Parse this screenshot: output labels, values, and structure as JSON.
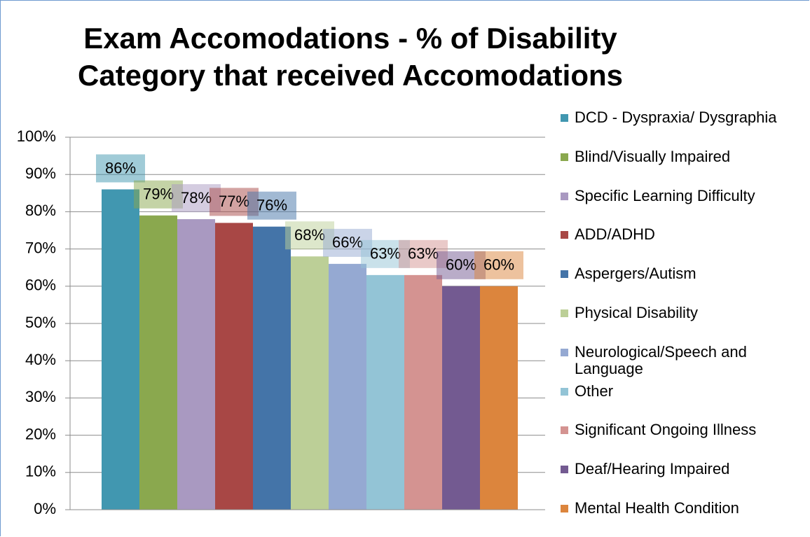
{
  "chart_data": {
    "type": "bar",
    "title": "Exam Accomodations - % of Disability Category that received Accomodations",
    "ylim": [
      0,
      100
    ],
    "yticks": [
      {
        "value": 0,
        "label": "0%"
      },
      {
        "value": 10,
        "label": "10%"
      },
      {
        "value": 20,
        "label": "20%"
      },
      {
        "value": 30,
        "label": "30%"
      },
      {
        "value": 40,
        "label": "40%"
      },
      {
        "value": 50,
        "label": "50%"
      },
      {
        "value": 60,
        "label": "60%"
      },
      {
        "value": 70,
        "label": "70%"
      },
      {
        "value": 80,
        "label": "80%"
      },
      {
        "value": 90,
        "label": "90%"
      },
      {
        "value": 100,
        "label": "100%"
      }
    ],
    "grid": true,
    "legend": "right",
    "series": [
      {
        "name": "DCD - Dyspraxia/ Dysgraphia",
        "color": "#4197b0",
        "values": [
          86
        ],
        "value_labels": [
          "86%"
        ]
      },
      {
        "name": "Blind/Visually Impaired",
        "color": "#8aa84e",
        "values": [
          79
        ],
        "value_labels": [
          "79%"
        ]
      },
      {
        "name": "Specific Learning Difficulty",
        "color": "#a999c1",
        "values": [
          78
        ],
        "value_labels": [
          "78%"
        ]
      },
      {
        "name": "ADD/ADHD",
        "color": "#a84745",
        "values": [
          77
        ],
        "value_labels": [
          "77%"
        ]
      },
      {
        "name": "Aspergers/Autism",
        "color": "#4474a8",
        "values": [
          76
        ],
        "value_labels": [
          "76%"
        ]
      },
      {
        "name": "Physical Disability",
        "color": "#bccf97",
        "values": [
          68
        ],
        "value_labels": [
          "68%"
        ]
      },
      {
        "name": "Neurological/Speech and Language",
        "color": "#95a9d2",
        "values": [
          66
        ],
        "value_labels": [
          "66%"
        ]
      },
      {
        "name": "Other",
        "color": "#93c4d6",
        "values": [
          63
        ],
        "value_labels": [
          "63%"
        ]
      },
      {
        "name": "Significant Ongoing Illness",
        "color": "#d49391",
        "values": [
          63
        ],
        "value_labels": [
          "63%"
        ]
      },
      {
        "name": "Deaf/Hearing Impaired",
        "color": "#735a91",
        "values": [
          60
        ],
        "value_labels": [
          "60%"
        ]
      },
      {
        "name": "Mental Health Condition",
        "color": "#dc853d",
        "values": [
          60
        ],
        "value_labels": [
          "60%"
        ]
      }
    ]
  }
}
